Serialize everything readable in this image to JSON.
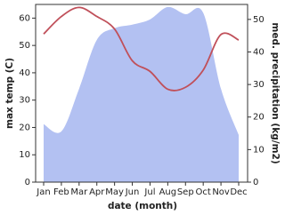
{
  "chart_data": {
    "type": "line-area",
    "x_label": "date (month)",
    "y_label": "max temp (C)",
    "y2_label": "med. precipitation (kg/m2)",
    "categories": [
      "Jan",
      "Feb",
      "Mar",
      "Apr",
      "May",
      "Jun",
      "Jul",
      "Aug",
      "Sep",
      "Oct",
      "Nov",
      "Dec"
    ],
    "series": [
      {
        "name": "max temp",
        "color": "#c0505a",
        "values": [
          54.2,
          60.6,
          63.9,
          60.6,
          56,
          44.4,
          40.5,
          34,
          34.7,
          41,
          54,
          52
        ]
      },
      {
        "name": "med. precipitation",
        "color": "#b3c1f2",
        "axis": "y2",
        "values": [
          17.8,
          15.6,
          28.7,
          43.7,
          47.3,
          48.4,
          50,
          53.8,
          51.6,
          52,
          28.7,
          14.5
        ]
      }
    ],
    "ylim": [
      0,
      65
    ],
    "yticks": [
      0,
      10,
      20,
      30,
      40,
      50,
      60
    ],
    "y2lim": [
      0,
      54.6
    ],
    "y2ticks": [
      0,
      10,
      20,
      30,
      40,
      50
    ]
  }
}
